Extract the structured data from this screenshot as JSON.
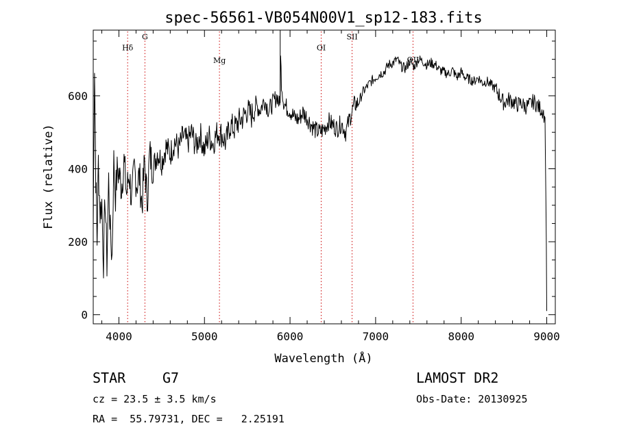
{
  "chart_data": {
    "type": "line",
    "title": "spec-56561-VB054N00V1_sp12-183.fits",
    "xlabel": "Wavelength (Å)",
    "ylabel": "Flux (relative)",
    "xlim": [
      3700,
      9100
    ],
    "ylim": [
      -25,
      780
    ],
    "x_ticks": [
      4000,
      5000,
      6000,
      7000,
      8000,
      9000
    ],
    "x_tick_labels": [
      "4000",
      "5000",
      "6000",
      "7000",
      "8000",
      "9000"
    ],
    "y_ticks": [
      0,
      200,
      400,
      600
    ],
    "y_tick_labels": [
      "0",
      "200",
      "400",
      "600"
    ],
    "grid": false,
    "line_color": "#000000",
    "marker_line_color": "#cc0000",
    "spectral_lines": [
      {
        "label": "Hδ",
        "x": 4102,
        "label_y": 725
      },
      {
        "label": "G",
        "x": 4304,
        "label_y": 755
      },
      {
        "label": "Mg",
        "x": 5175,
        "label_y": 690
      },
      {
        "label": "OI",
        "x": 6364,
        "label_y": 725
      },
      {
        "label": "SII",
        "x": 6725,
        "label_y": 755
      },
      {
        "label": "OII",
        "x": 7437,
        "label_y": 692
      }
    ],
    "series": [
      {
        "x": [
          3700,
          3715,
          3730,
          3745,
          3760,
          3780,
          3800,
          3820,
          3840,
          3860,
          3880,
          3900,
          3920,
          3940,
          3960,
          3980,
          4000,
          4030,
          4060,
          4090,
          4120,
          4150,
          4180,
          4210,
          4240,
          4270,
          4300,
          4330,
          4360,
          4400,
          4450,
          4500,
          4550,
          4600,
          4650,
          4700,
          4750,
          4800,
          4850,
          4900,
          4950,
          5000,
          5050,
          5100,
          5150,
          5200,
          5250,
          5300,
          5350,
          5400,
          5450,
          5500,
          5550,
          5600,
          5650,
          5700,
          5750,
          5800,
          5850,
          5880,
          5890,
          5900,
          5920,
          5950,
          6000,
          6050,
          6100,
          6150,
          6200,
          6250,
          6300,
          6350,
          6400,
          6450,
          6500,
          6550,
          6600,
          6650,
          6700,
          6750,
          6800,
          6850,
          6900,
          6950,
          7000,
          7050,
          7100,
          7150,
          7200,
          7250,
          7300,
          7350,
          7400,
          7450,
          7500,
          7550,
          7600,
          7650,
          7700,
          7750,
          7800,
          7850,
          7900,
          7950,
          8000,
          8050,
          8100,
          8150,
          8200,
          8250,
          8300,
          8350,
          8400,
          8450,
          8500,
          8550,
          8600,
          8650,
          8700,
          8750,
          8800,
          8850,
          8900,
          8950,
          8980,
          8995,
          9000
        ],
        "y": [
          240,
          690,
          380,
          200,
          420,
          280,
          310,
          150,
          320,
          140,
          370,
          220,
          160,
          420,
          330,
          390,
          390,
          350,
          420,
          330,
          390,
          310,
          400,
          360,
          380,
          300,
          420,
          310,
          440,
          400,
          445,
          420,
          460,
          440,
          475,
          455,
          490,
          470,
          500,
          460,
          495,
          450,
          490,
          470,
          500,
          495,
          470,
          520,
          510,
          530,
          540,
          560,
          545,
          575,
          560,
          590,
          560,
          580,
          600,
          570,
          700,
          640,
          590,
          570,
          560,
          540,
          535,
          555,
          540,
          520,
          505,
          500,
          510,
          530,
          520,
          510,
          525,
          500,
          540,
          575,
          580,
          610,
          625,
          640,
          650,
          660,
          665,
          685,
          690,
          700,
          680,
          675,
          695,
          680,
          700,
          695,
          685,
          690,
          685,
          670,
          665,
          660,
          670,
          650,
          665,
          650,
          645,
          640,
          650,
          635,
          640,
          630,
          620,
          600,
          580,
          590,
          585,
          575,
          580,
          570,
          575,
          585,
          570,
          560,
          540,
          200,
          10
        ]
      }
    ]
  },
  "info": {
    "object_class": "STAR",
    "subclass": "G7",
    "survey": "LAMOST DR2",
    "redshift_line": "cz = 23.5 ± 3.5 km/s",
    "obs_date_line": "Obs-Date: 20130925",
    "coords_line": "RA =  55.79731, DEC =   2.25191"
  }
}
